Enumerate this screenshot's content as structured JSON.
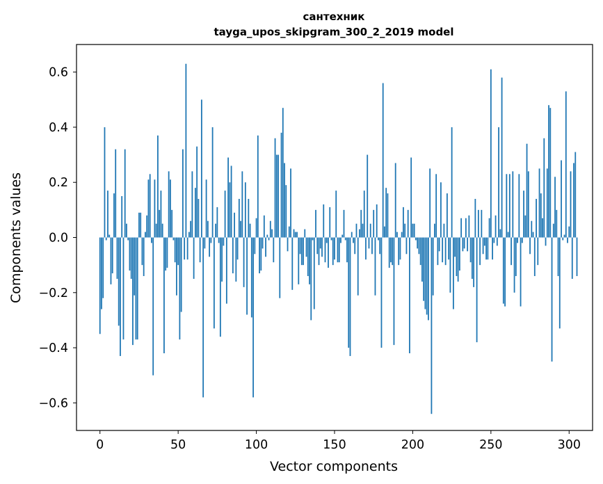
{
  "chart_data": {
    "type": "bar",
    "title": "сантехник",
    "subtitle": "tayga_upos_skipgram_300_2_2019 model",
    "xlabel": "Vector components",
    "ylabel": "Components values",
    "xlim": [
      -15,
      315
    ],
    "ylim": [
      -0.7,
      0.7
    ],
    "xticks": [
      0,
      50,
      100,
      150,
      200,
      250,
      300
    ],
    "yticks": [
      -0.6,
      -0.4,
      -0.2,
      0.0,
      0.2,
      0.4,
      0.6
    ],
    "ytick_labels": [
      "−0.6",
      "−0.4",
      "−0.2",
      "0.0",
      "0.2",
      "0.4",
      "0.6"
    ],
    "xtick_labels": [
      "0",
      "50",
      "100",
      "150",
      "200",
      "250",
      "300"
    ],
    "bar_color": "#1f77b4",
    "values": [
      -0.35,
      -0.26,
      -0.22,
      0.4,
      -0.01,
      0.17,
      0.01,
      -0.17,
      -0.13,
      0.16,
      0.32,
      -0.15,
      -0.32,
      -0.43,
      0.15,
      -0.37,
      0.32,
      0.05,
      -0.01,
      -0.12,
      -0.15,
      -0.39,
      -0.21,
      -0.37,
      -0.37,
      0.09,
      0.09,
      -0.1,
      -0.14,
      0.02,
      0.08,
      0.21,
      0.23,
      -0.02,
      -0.5,
      0.21,
      0.05,
      0.37,
      0.1,
      0.17,
      0.05,
      -0.42,
      -0.12,
      -0.11,
      0.24,
      0.21,
      0.1,
      -0.01,
      -0.09,
      -0.21,
      -0.1,
      -0.37,
      -0.27,
      0.32,
      -0.08,
      0.63,
      -0.08,
      0.02,
      0.06,
      0.24,
      -0.15,
      0.18,
      0.33,
      0.14,
      -0.09,
      0.5,
      -0.58,
      -0.04,
      0.21,
      0.06,
      -0.07,
      -0.02,
      0.4,
      -0.33,
      0.05,
      0.11,
      -0.02,
      -0.36,
      -0.16,
      -0.03,
      0.17,
      -0.24,
      0.29,
      0.2,
      0.26,
      -0.13,
      0.09,
      -0.16,
      -0.08,
      0.14,
      0.06,
      0.24,
      -0.18,
      0.2,
      -0.28,
      0.14,
      0.05,
      -0.29,
      -0.58,
      -0.06,
      0.07,
      0.37,
      -0.13,
      -0.12,
      -0.04,
      0.08,
      -0.07,
      0.01,
      -0.01,
      0.06,
      0.03,
      -0.09,
      0.36,
      0.3,
      0.3,
      -0.22,
      0.38,
      0.47,
      0.27,
      0.19,
      -0.05,
      0.04,
      0.25,
      -0.19,
      0.03,
      0.02,
      0.02,
      -0.17,
      -0.06,
      -0.1,
      -0.1,
      0.03,
      -0.07,
      -0.14,
      -0.17,
      -0.3,
      -0.01,
      -0.26,
      0.1,
      -0.06,
      -0.1,
      -0.04,
      -0.07,
      0.12,
      -0.09,
      -0.02,
      -0.11,
      0.11,
      -0.01,
      -0.1,
      -0.08,
      0.17,
      -0.09,
      -0.09,
      -0.02,
      0.01,
      0.1,
      -0.01,
      -0.09,
      -0.4,
      -0.43,
      0.02,
      -0.02,
      -0.06,
      0.05,
      -0.21,
      0.03,
      0.1,
      0.05,
      0.17,
      -0.08,
      0.3,
      -0.04,
      0.05,
      -0.06,
      0.1,
      -0.21,
      0.12,
      -0.01,
      -0.06,
      -0.4,
      0.56,
      0.04,
      0.18,
      0.16,
      -0.11,
      -0.09,
      -0.1,
      -0.39,
      0.27,
      0.02,
      -0.1,
      -0.08,
      0.02,
      0.11,
      0.05,
      -0.06,
      0.1,
      -0.42,
      0.29,
      0.05,
      0.05,
      -0.01,
      -0.04,
      -0.06,
      -0.1,
      -0.16,
      -0.23,
      -0.26,
      -0.28,
      -0.3,
      0.25,
      -0.64,
      -0.21,
      0.05,
      0.23,
      -0.1,
      -0.05,
      0.2,
      -0.09,
      0.05,
      -0.1,
      0.16,
      -0.08,
      -0.2,
      0.4,
      -0.26,
      -0.07,
      -0.14,
      -0.16,
      -0.12,
      0.07,
      -0.05,
      -0.04,
      0.07,
      -0.05,
      0.08,
      -0.09,
      -0.15,
      -0.18,
      0.14,
      -0.38,
      0.1,
      -0.1,
      0.1,
      -0.06,
      -0.03,
      -0.08,
      -0.08,
      0.07,
      0.61,
      -0.08,
      -0.02,
      0.08,
      -0.03,
      0.4,
      0.03,
      0.58,
      -0.24,
      -0.25,
      0.23,
      0.02,
      0.23,
      -0.1,
      0.24,
      -0.2,
      -0.14,
      -0.02,
      0.23,
      -0.25,
      -0.02,
      0.17,
      0.08,
      0.34,
      0.24,
      -0.06,
      0.06,
      0.02,
      -0.14,
      0.14,
      -0.1,
      0.25,
      0.16,
      0.07,
      0.36,
      -0.03,
      0.25,
      0.48,
      0.47,
      -0.45,
      0.05,
      0.22,
      0.1,
      -0.14,
      -0.33,
      0.28,
      -0.01,
      0.01,
      0.53,
      -0.02,
      0.04,
      0.24,
      -0.15,
      0.27,
      0.31,
      -0.14
    ]
  }
}
